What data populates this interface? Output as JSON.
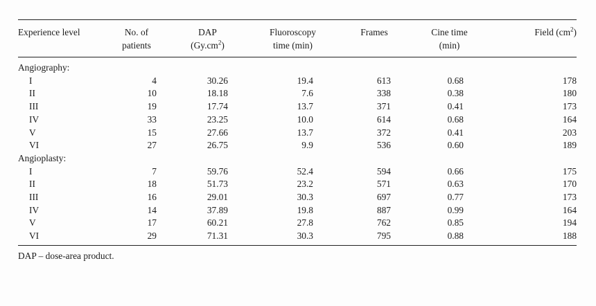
{
  "table": {
    "headers": {
      "experience_level": "Experience level",
      "patients_line1": "No. of",
      "patients_line2": "patients",
      "dap_line1": "DAP",
      "dap_line2": "(Gy.cm",
      "dap_sup": "2",
      "dap_close": ")",
      "fluoro_line1": "Fluoroscopy",
      "fluoro_line2": "time (min)",
      "frames": "Frames",
      "cine_line1": "Cine time",
      "cine_line2": "(min)",
      "field": "Field (cm",
      "field_sup": "2",
      "field_close": ")"
    },
    "groups": [
      {
        "label": "Angiography:",
        "rows": [
          {
            "level": "I",
            "patients": "4",
            "dap": "30.26",
            "fluoro": "19.4",
            "frames": "613",
            "cine": "0.68",
            "field": "178"
          },
          {
            "level": "II",
            "patients": "10",
            "dap": "18.18",
            "fluoro": "7.6",
            "frames": "338",
            "cine": "0.38",
            "field": "180"
          },
          {
            "level": "III",
            "patients": "19",
            "dap": "17.74",
            "fluoro": "13.7",
            "frames": "371",
            "cine": "0.41",
            "field": "173"
          },
          {
            "level": "IV",
            "patients": "33",
            "dap": "23.25",
            "fluoro": "10.0",
            "frames": "614",
            "cine": "0.68",
            "field": "164"
          },
          {
            "level": "V",
            "patients": "15",
            "dap": "27.66",
            "fluoro": "13.7",
            "frames": "372",
            "cine": "0.41",
            "field": "203"
          },
          {
            "level": "VI",
            "patients": "27",
            "dap": "26.75",
            "fluoro": "9.9",
            "frames": "536",
            "cine": "0.60",
            "field": "189"
          }
        ]
      },
      {
        "label": "Angioplasty:",
        "rows": [
          {
            "level": "I",
            "patients": "7",
            "dap": "59.76",
            "fluoro": "52.4",
            "frames": "594",
            "cine": "0.66",
            "field": "175"
          },
          {
            "level": "II",
            "patients": "18",
            "dap": "51.73",
            "fluoro": "23.2",
            "frames": "571",
            "cine": "0.63",
            "field": "170"
          },
          {
            "level": "III",
            "patients": "16",
            "dap": "29.01",
            "fluoro": "30.3",
            "frames": "697",
            "cine": "0.77",
            "field": "173"
          },
          {
            "level": "IV",
            "patients": "14",
            "dap": "37.89",
            "fluoro": "19.8",
            "frames": "887",
            "cine": "0.99",
            "field": "164"
          },
          {
            "level": "V",
            "patients": "17",
            "dap": "60.21",
            "fluoro": "27.8",
            "frames": "762",
            "cine": "0.85",
            "field": "194"
          },
          {
            "level": "VI",
            "patients": "29",
            "dap": "71.31",
            "fluoro": "30.3",
            "frames": "795",
            "cine": "0.88",
            "field": "188"
          }
        ]
      }
    ]
  },
  "footnote": "DAP – dose-area product."
}
